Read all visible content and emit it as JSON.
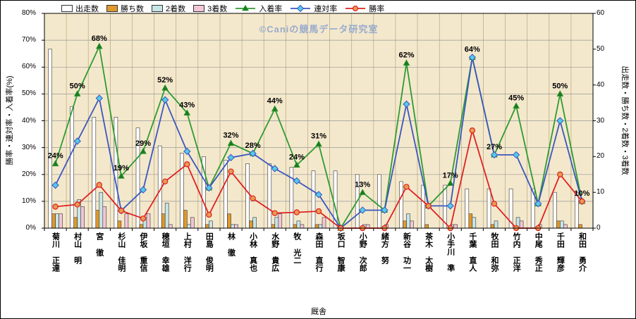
{
  "watermark": "©Caniの競馬データ研究室",
  "colors": {
    "plot_bg": "#f4e8cc",
    "grid_h": "#999999",
    "grid_v": "#b5a67e",
    "axis": "#000000",
    "watermark": "#97abce"
  },
  "chart_data": {
    "type": "combo-bar-line",
    "title": "",
    "xlabel": "厩舎",
    "ylabel_left": "勝率・連対率・入着率(%)",
    "ylabel_right": "出走数・勝ち数・2着数・3着数",
    "ylim_left": [
      0,
      80
    ],
    "ylim_right": [
      0,
      60
    ],
    "y_left_ticks": [
      "0%",
      "10%",
      "20%",
      "30%",
      "40%",
      "50%",
      "60%",
      "70%",
      "80%"
    ],
    "y_right_ticks": [
      "0",
      "10",
      "20",
      "30",
      "40",
      "50",
      "60"
    ],
    "grid": true,
    "legend_position": "top",
    "categories": [
      "菊川 正達",
      "村山 明",
      "宮 徹",
      "杉山 佳明",
      "伊坂 重信",
      "穂垣 幸雄",
      "上村 洋行",
      "田島 俊明",
      "林 徹",
      "小林 真也",
      "水野 貴広",
      "牧 光二",
      "森田 直行",
      "坂口 智康",
      "小野 次郎",
      "緒方 努",
      "新谷 功一",
      "茶木 太樹",
      "小手川 準",
      "千葉 直人",
      "牧田 和弥",
      "竹内 正洋",
      "中尾 秀正",
      "千田 輝彦",
      "和田 勇介"
    ],
    "bar_series": [
      {
        "key": "starts",
        "name": "出走数",
        "color": "#ffffff",
        "values": [
          50,
          34,
          31,
          31,
          28,
          23,
          21,
          20,
          19,
          18,
          18,
          17,
          16,
          16,
          15,
          15,
          13,
          12,
          12,
          11,
          11,
          11,
          11,
          10,
          10
        ]
      },
      {
        "key": "wins",
        "name": "勝ち数",
        "color": "#e0992c",
        "values": [
          4,
          3,
          5,
          2,
          1,
          4,
          5,
          1,
          4,
          2,
          1,
          1,
          1,
          0,
          0,
          0,
          2,
          1,
          0,
          4,
          1,
          0,
          0,
          2,
          1
        ]
      },
      {
        "key": "seconds",
        "name": "2着数",
        "color": "#c5e6e8",
        "values": [
          4,
          8,
          10,
          0,
          3,
          7,
          1,
          2,
          1,
          3,
          3,
          2,
          1,
          0,
          1,
          1,
          4,
          0,
          1,
          3,
          2,
          3,
          1,
          2,
          0
        ]
      },
      {
        "key": "thirds",
        "name": "3着数",
        "color": "#f3c6d5",
        "values": [
          4,
          6,
          6,
          4,
          4,
          1,
          3,
          0,
          1,
          0,
          4,
          1,
          3,
          0,
          1,
          0,
          2,
          0,
          1,
          0,
          0,
          2,
          0,
          1,
          0
        ]
      }
    ],
    "line_series": [
      {
        "key": "place-rate",
        "name": "入着率",
        "color": "#2e9b30",
        "marker": "triangle",
        "marker_color": "#1d7a20",
        "values": [
          24,
          50,
          67.7,
          19.4,
          28.6,
          52.2,
          42.9,
          15,
          31.6,
          27.8,
          44.4,
          23.5,
          31.3,
          0,
          13.3,
          6.7,
          61.5,
          8.3,
          16.7,
          63.6,
          27.3,
          45.5,
          9.1,
          50,
          10
        ],
        "labels": [
          "24%",
          "50%",
          "68%",
          "19%",
          "29%",
          "52%",
          "43%",
          "",
          "32%",
          "28%",
          "44%",
          "24%",
          "31%",
          "",
          "13%",
          "",
          "62%",
          "",
          "17%",
          "64%",
          "27%",
          "45%",
          "",
          "50%",
          "10%"
        ]
      },
      {
        "key": "top2-rate",
        "name": "連対率",
        "color": "#3a57c0",
        "marker": "diamond",
        "marker_color": "#55c9ea",
        "values": [
          16,
          32.4,
          48.4,
          6.5,
          14.3,
          47.8,
          28.6,
          15,
          26.3,
          27.8,
          22.2,
          17.6,
          12.5,
          0,
          6.7,
          6.7,
          46.2,
          8.3,
          8.3,
          63.6,
          27.3,
          27.3,
          9.1,
          40,
          10
        ]
      },
      {
        "key": "win-rate",
        "name": "勝率",
        "color": "#e02020",
        "marker": "circle",
        "marker_color": "#e89b50",
        "values": [
          8,
          8.8,
          16.1,
          6.5,
          3.6,
          17.4,
          23.8,
          5,
          21.1,
          11.1,
          5.6,
          5.9,
          6.3,
          0,
          0,
          0,
          15.4,
          8.3,
          0,
          36.4,
          9.1,
          0,
          0,
          20,
          10
        ]
      }
    ]
  }
}
